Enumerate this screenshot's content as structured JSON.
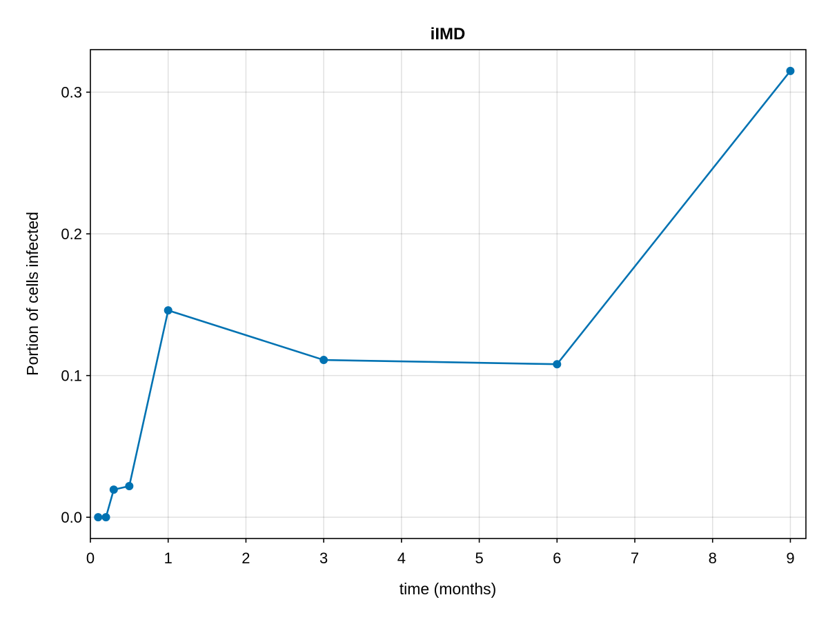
{
  "chart_data": {
    "type": "line",
    "title": "iIMD",
    "xlabel": "time (months)",
    "ylabel": "Portion of cells infected",
    "xlim": [
      0,
      9.2
    ],
    "ylim": [
      -0.015,
      0.33
    ],
    "xticks": [
      0,
      1,
      2,
      3,
      4,
      5,
      6,
      7,
      8,
      9
    ],
    "xtick_labels": [
      "0",
      "1",
      "2",
      "3",
      "4",
      "5",
      "6",
      "7",
      "8",
      "9"
    ],
    "yticks": [
      0.0,
      0.1,
      0.2,
      0.3
    ],
    "ytick_labels": [
      "0.0",
      "0.1",
      "0.2",
      "0.3"
    ],
    "grid": true,
    "series": [
      {
        "color": "#0072b2",
        "markers": true,
        "x": [
          0.1,
          0.2,
          0.3,
          0.5,
          1,
          3,
          6,
          9
        ],
        "y": [
          0.0,
          0.0,
          0.0195,
          0.022,
          0.146,
          0.111,
          0.108,
          0.315
        ]
      }
    ]
  }
}
